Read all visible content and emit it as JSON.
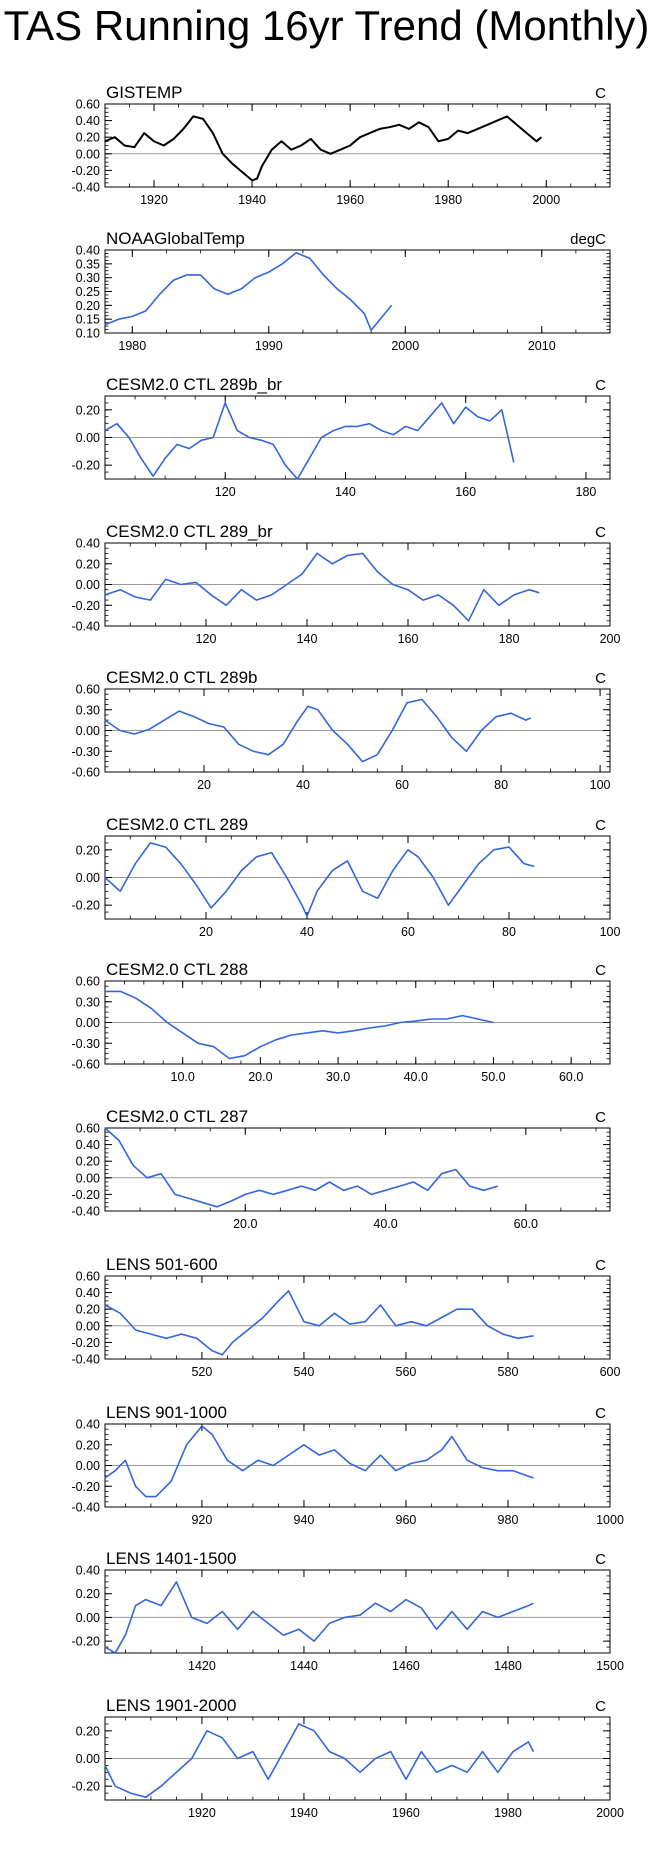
{
  "title": "TAS Running 16yr Trend (Monthly)",
  "colors": {
    "black": "#000000",
    "blue": "#3366dd",
    "zero": "#9a9a9a"
  },
  "chart_data": [
    {
      "type": "line",
      "title": "GISTEMP",
      "units": "C",
      "color": "black",
      "xlim": [
        1910,
        2013
      ],
      "ylim": [
        -0.4,
        0.6
      ],
      "xticks": [
        1920,
        1940,
        1960,
        1980,
        2000
      ],
      "xticklabels": [
        "1920",
        "1940",
        "1960",
        "1980",
        "2000"
      ],
      "yticks": [
        -0.4,
        -0.2,
        0,
        0.2,
        0.4,
        0.6
      ],
      "yticklabels": [
        "-0.40",
        "-0.20",
        "0.00",
        "0.20",
        "0.40",
        "0.60"
      ],
      "x": [
        1910,
        1912,
        1914,
        1916,
        1918,
        1920,
        1922,
        1924,
        1926,
        1928,
        1930,
        1932,
        1934,
        1936,
        1938,
        1940,
        1941,
        1942,
        1944,
        1946,
        1948,
        1950,
        1952,
        1954,
        1956,
        1958,
        1960,
        1962,
        1964,
        1966,
        1968,
        1970,
        1972,
        1974,
        1976,
        1978,
        1980,
        1982,
        1984,
        1986,
        1988,
        1990,
        1992,
        1994,
        1996,
        1998,
        1999
      ],
      "y": [
        0.15,
        0.2,
        0.1,
        0.08,
        0.25,
        0.15,
        0.1,
        0.18,
        0.3,
        0.45,
        0.42,
        0.25,
        0.0,
        -0.12,
        -0.22,
        -0.32,
        -0.3,
        -0.15,
        0.05,
        0.15,
        0.05,
        0.1,
        0.18,
        0.05,
        0.0,
        0.05,
        0.1,
        0.2,
        0.25,
        0.3,
        0.32,
        0.35,
        0.3,
        0.38,
        0.32,
        0.15,
        0.18,
        0.28,
        0.25,
        0.3,
        0.35,
        0.4,
        0.45,
        0.35,
        0.25,
        0.15,
        0.2
      ]
    },
    {
      "type": "line",
      "title": "NOAAGlobalTemp",
      "units": "degC",
      "color": "blue",
      "xlim": [
        1978,
        2015
      ],
      "ylim": [
        0.1,
        0.4
      ],
      "xticks": [
        1980,
        1990,
        2000,
        2010
      ],
      "xticklabels": [
        "1980",
        "1990",
        "2000",
        "2010"
      ],
      "yticks": [
        0.1,
        0.15,
        0.2,
        0.25,
        0.3,
        0.35,
        0.4
      ],
      "yticklabels": [
        "0.10",
        "0.15",
        "0.20",
        "0.25",
        "0.30",
        "0.35",
        "0.40"
      ],
      "x": [
        1978,
        1979,
        1980,
        1981,
        1982,
        1983,
        1984,
        1985,
        1986,
        1987,
        1988,
        1989,
        1990,
        1991,
        1992,
        1993,
        1994,
        1995,
        1996,
        1997,
        1997.5,
        1998,
        1999
      ],
      "y": [
        0.13,
        0.15,
        0.16,
        0.18,
        0.24,
        0.29,
        0.31,
        0.31,
        0.26,
        0.24,
        0.26,
        0.3,
        0.32,
        0.35,
        0.39,
        0.37,
        0.31,
        0.26,
        0.22,
        0.17,
        0.11,
        0.14,
        0.2
      ]
    },
    {
      "type": "line",
      "title": "CESM2.0 CTL 289b_br",
      "units": "C",
      "color": "blue",
      "xlim": [
        100,
        184
      ],
      "ylim": [
        -0.3,
        0.3
      ],
      "xticks": [
        120,
        140,
        160,
        180
      ],
      "xticklabels": [
        "120",
        "140",
        "160",
        "180"
      ],
      "yticks": [
        -0.2,
        0,
        0.2
      ],
      "yticklabels": [
        "-0.20",
        "0.00",
        "0.20"
      ],
      "x": [
        100,
        102,
        104,
        106,
        108,
        110,
        112,
        114,
        116,
        118,
        120,
        122,
        124,
        126,
        128,
        130,
        132,
        134,
        136,
        138,
        140,
        142,
        144,
        146,
        148,
        150,
        152,
        154,
        156,
        158,
        160,
        162,
        164,
        166,
        168
      ],
      "y": [
        0.05,
        0.1,
        0.0,
        -0.15,
        -0.28,
        -0.15,
        -0.05,
        -0.08,
        -0.02,
        0.0,
        0.25,
        0.05,
        0.0,
        -0.02,
        -0.05,
        -0.2,
        -0.3,
        -0.15,
        0.0,
        0.05,
        0.08,
        0.08,
        0.1,
        0.05,
        0.02,
        0.08,
        0.05,
        0.15,
        0.25,
        0.1,
        0.22,
        0.15,
        0.12,
        0.2,
        -0.18
      ]
    },
    {
      "type": "line",
      "title": "CESM2.0 CTL 289_br",
      "units": "C",
      "color": "blue",
      "xlim": [
        100,
        200
      ],
      "ylim": [
        -0.4,
        0.4
      ],
      "xticks": [
        120,
        140,
        160,
        180,
        200
      ],
      "xticklabels": [
        "120",
        "140",
        "160",
        "180",
        "200"
      ],
      "yticks": [
        -0.4,
        -0.2,
        0,
        0.2,
        0.4
      ],
      "yticklabels": [
        "-0.40",
        "-0.20",
        "0.00",
        "0.20",
        "0.40"
      ],
      "x": [
        100,
        103,
        106,
        109,
        112,
        115,
        118,
        121,
        124,
        127,
        130,
        133,
        136,
        139,
        142,
        145,
        148,
        151,
        154,
        157,
        160,
        163,
        166,
        169,
        172,
        175,
        178,
        181,
        184,
        186
      ],
      "y": [
        -0.1,
        -0.05,
        -0.12,
        -0.15,
        0.05,
        0.0,
        0.02,
        -0.1,
        -0.2,
        -0.05,
        -0.15,
        -0.1,
        0.0,
        0.1,
        0.3,
        0.2,
        0.28,
        0.3,
        0.12,
        0.0,
        -0.05,
        -0.15,
        -0.1,
        -0.2,
        -0.35,
        -0.05,
        -0.2,
        -0.1,
        -0.05,
        -0.08
      ]
    },
    {
      "type": "line",
      "title": "CESM2.0 CTL 289b",
      "units": "C",
      "color": "blue",
      "xlim": [
        0,
        102
      ],
      "ylim": [
        -0.6,
        0.6
      ],
      "xticks": [
        20,
        40,
        60,
        80,
        100
      ],
      "xticklabels": [
        "20",
        "40",
        "60",
        "80",
        "100"
      ],
      "yticks": [
        -0.6,
        -0.3,
        0,
        0.3,
        0.6
      ],
      "yticklabels": [
        "-0.60",
        "-0.30",
        "0.00",
        "0.30",
        "0.60"
      ],
      "x": [
        0,
        3,
        6,
        9,
        12,
        15,
        18,
        21,
        24,
        27,
        30,
        33,
        36,
        39,
        41,
        43,
        46,
        49,
        52,
        55,
        58,
        61,
        64,
        67,
        70,
        73,
        76,
        79,
        82,
        85,
        86
      ],
      "y": [
        0.15,
        0.0,
        -0.05,
        0.02,
        0.15,
        0.28,
        0.2,
        0.1,
        0.05,
        -0.2,
        -0.3,
        -0.35,
        -0.2,
        0.15,
        0.35,
        0.3,
        0.0,
        -0.2,
        -0.45,
        -0.35,
        0.0,
        0.4,
        0.45,
        0.2,
        -0.1,
        -0.3,
        0.0,
        0.2,
        0.25,
        0.15,
        0.18
      ]
    },
    {
      "type": "line",
      "title": "CESM2.0 CTL 289",
      "units": "C",
      "color": "blue",
      "xlim": [
        0,
        100
      ],
      "ylim": [
        -0.3,
        0.3
      ],
      "xticks": [
        20,
        40,
        60,
        80,
        100
      ],
      "xticklabels": [
        "20",
        "40",
        "60",
        "80",
        "100"
      ],
      "yticks": [
        -0.2,
        0,
        0.2
      ],
      "yticklabels": [
        "-0.20",
        "0.00",
        "0.20"
      ],
      "x": [
        0,
        3,
        6,
        9,
        12,
        15,
        18,
        21,
        24,
        27,
        30,
        33,
        36,
        39,
        40,
        42,
        45,
        48,
        51,
        54,
        57,
        60,
        62,
        65,
        68,
        71,
        74,
        77,
        80,
        83,
        85
      ],
      "y": [
        0.0,
        -0.1,
        0.1,
        0.25,
        0.22,
        0.1,
        -0.05,
        -0.22,
        -0.1,
        0.05,
        0.15,
        0.18,
        0.0,
        -0.2,
        -0.28,
        -0.1,
        0.05,
        0.12,
        -0.1,
        -0.15,
        0.05,
        0.2,
        0.15,
        0.0,
        -0.2,
        -0.05,
        0.1,
        0.2,
        0.22,
        0.1,
        0.08
      ]
    },
    {
      "type": "line",
      "title": "CESM2.0 CTL 288",
      "units": "C",
      "color": "blue",
      "xlim": [
        0,
        65
      ],
      "ylim": [
        -0.6,
        0.6
      ],
      "xticks": [
        10,
        20,
        30,
        40,
        50,
        60
      ],
      "xticklabels": [
        "10.0",
        "20.0",
        "30.0",
        "40.0",
        "50.0",
        "60.0"
      ],
      "yticks": [
        -0.6,
        -0.3,
        0,
        0.3,
        0.6
      ],
      "yticklabels": [
        "-0.60",
        "-0.30",
        "0.00",
        "0.30",
        "0.60"
      ],
      "x": [
        0,
        2,
        4,
        6,
        8,
        10,
        12,
        14,
        16,
        18,
        20,
        22,
        24,
        26,
        28,
        30,
        32,
        34,
        36,
        38,
        40,
        42,
        44,
        46,
        48,
        50
      ],
      "y": [
        0.45,
        0.45,
        0.35,
        0.2,
        0.0,
        -0.15,
        -0.3,
        -0.35,
        -0.52,
        -0.48,
        -0.35,
        -0.25,
        -0.18,
        -0.15,
        -0.12,
        -0.15,
        -0.12,
        -0.08,
        -0.05,
        0.0,
        0.02,
        0.05,
        0.05,
        0.1,
        0.05,
        0.0
      ]
    },
    {
      "type": "line",
      "title": "CESM2.0 CTL 287",
      "units": "C",
      "color": "blue",
      "xlim": [
        0,
        72
      ],
      "ylim": [
        -0.4,
        0.6
      ],
      "xticks": [
        20,
        40,
        60
      ],
      "xticklabels": [
        "20.0",
        "40.0",
        "60.0"
      ],
      "yticks": [
        -0.4,
        -0.2,
        0,
        0.2,
        0.4,
        0.6
      ],
      "yticklabels": [
        "-0.40",
        "-0.20",
        "0.00",
        "0.20",
        "0.40",
        "0.60"
      ],
      "x": [
        0,
        2,
        4,
        6,
        8,
        10,
        12,
        14,
        16,
        18,
        20,
        22,
        24,
        26,
        28,
        30,
        32,
        34,
        36,
        38,
        40,
        42,
        44,
        46,
        48,
        50,
        52,
        54,
        56
      ],
      "y": [
        0.6,
        0.45,
        0.15,
        0.0,
        0.05,
        -0.2,
        -0.25,
        -0.3,
        -0.35,
        -0.28,
        -0.2,
        -0.15,
        -0.2,
        -0.15,
        -0.1,
        -0.15,
        -0.05,
        -0.15,
        -0.1,
        -0.2,
        -0.15,
        -0.1,
        -0.05,
        -0.15,
        0.05,
        0.1,
        -0.1,
        -0.15,
        -0.1
      ]
    },
    {
      "type": "line",
      "title": "LENS 501-600",
      "units": "C",
      "color": "blue",
      "xlim": [
        501,
        600
      ],
      "ylim": [
        -0.4,
        0.6
      ],
      "xticks": [
        520,
        540,
        560,
        580,
        600
      ],
      "xticklabels": [
        "520",
        "540",
        "560",
        "580",
        "600"
      ],
      "yticks": [
        -0.4,
        -0.2,
        0,
        0.2,
        0.4,
        0.6
      ],
      "yticklabels": [
        "-0.40",
        "-0.20",
        "0.00",
        "0.20",
        "0.40",
        "0.60"
      ],
      "x": [
        501,
        504,
        507,
        510,
        513,
        516,
        519,
        522,
        524,
        526,
        529,
        532,
        535,
        537,
        540,
        543,
        546,
        549,
        552,
        555,
        558,
        561,
        564,
        567,
        570,
        573,
        576,
        579,
        582,
        585
      ],
      "y": [
        0.25,
        0.15,
        -0.05,
        -0.1,
        -0.15,
        -0.1,
        -0.15,
        -0.3,
        -0.35,
        -0.2,
        -0.05,
        0.1,
        0.3,
        0.42,
        0.05,
        0.0,
        0.15,
        0.02,
        0.05,
        0.25,
        0.0,
        0.05,
        0.0,
        0.1,
        0.2,
        0.2,
        0.0,
        -0.1,
        -0.15,
        -0.12
      ]
    },
    {
      "type": "line",
      "title": "LENS 901-1000",
      "units": "C",
      "color": "blue",
      "xlim": [
        901,
        1000
      ],
      "ylim": [
        -0.4,
        0.4
      ],
      "xticks": [
        920,
        940,
        960,
        980,
        1000
      ],
      "xticklabels": [
        "920",
        "940",
        "960",
        "980",
        "1000"
      ],
      "yticks": [
        -0.4,
        -0.2,
        0,
        0.2,
        0.4
      ],
      "yticklabels": [
        "-0.40",
        "-0.20",
        "0.00",
        "0.20",
        "0.40"
      ],
      "x": [
        901,
        903,
        905,
        907,
        909,
        911,
        914,
        917,
        920,
        922,
        925,
        928,
        931,
        934,
        937,
        940,
        943,
        946,
        949,
        952,
        955,
        958,
        961,
        964,
        967,
        969,
        972,
        975,
        978,
        981,
        985
      ],
      "y": [
        -0.12,
        -0.05,
        0.05,
        -0.2,
        -0.3,
        -0.3,
        -0.15,
        0.2,
        0.38,
        0.3,
        0.05,
        -0.05,
        0.05,
        0.0,
        0.1,
        0.2,
        0.1,
        0.15,
        0.02,
        -0.05,
        0.1,
        -0.05,
        0.02,
        0.05,
        0.15,
        0.28,
        0.05,
        -0.02,
        -0.05,
        -0.05,
        -0.12
      ]
    },
    {
      "type": "line",
      "title": "LENS 1401-1500",
      "units": "C",
      "color": "blue",
      "xlim": [
        1401,
        1500
      ],
      "ylim": [
        -0.3,
        0.4
      ],
      "xticks": [
        1420,
        1440,
        1460,
        1480,
        1500
      ],
      "xticklabels": [
        "1420",
        "1440",
        "1460",
        "1480",
        "1500"
      ],
      "yticks": [
        -0.2,
        0,
        0.2,
        0.4
      ],
      "yticklabels": [
        "-0.20",
        "0.00",
        "0.20",
        "0.40"
      ],
      "x": [
        1401,
        1403,
        1405,
        1407,
        1409,
        1412,
        1415,
        1418,
        1421,
        1424,
        1427,
        1430,
        1433,
        1436,
        1439,
        1442,
        1445,
        1448,
        1451,
        1454,
        1457,
        1460,
        1463,
        1466,
        1469,
        1472,
        1475,
        1478,
        1481,
        1484,
        1485
      ],
      "y": [
        -0.25,
        -0.3,
        -0.15,
        0.1,
        0.15,
        0.1,
        0.3,
        0.0,
        -0.05,
        0.05,
        -0.1,
        0.05,
        -0.05,
        -0.15,
        -0.1,
        -0.2,
        -0.05,
        0.0,
        0.02,
        0.12,
        0.05,
        0.15,
        0.08,
        -0.1,
        0.05,
        -0.1,
        0.05,
        0.0,
        0.05,
        0.1,
        0.12
      ]
    },
    {
      "type": "line",
      "title": "LENS 1901-2000",
      "units": "C",
      "color": "blue",
      "xlim": [
        1901,
        2000
      ],
      "ylim": [
        -0.3,
        0.3
      ],
      "xticks": [
        1920,
        1940,
        1960,
        1980,
        2000
      ],
      "xticklabels": [
        "1920",
        "1940",
        "1960",
        "1980",
        "2000"
      ],
      "yticks": [
        -0.2,
        0,
        0.2
      ],
      "yticklabels": [
        "-0.20",
        "0.00",
        "0.20"
      ],
      "x": [
        1901,
        1903,
        1906,
        1909,
        1912,
        1915,
        1918,
        1921,
        1924,
        1927,
        1930,
        1933,
        1936,
        1939,
        1942,
        1945,
        1948,
        1951,
        1954,
        1957,
        1960,
        1963,
        1966,
        1969,
        1972,
        1975,
        1978,
        1981,
        1984,
        1985
      ],
      "y": [
        -0.05,
        -0.2,
        -0.25,
        -0.28,
        -0.2,
        -0.1,
        0.0,
        0.2,
        0.15,
        0.0,
        0.05,
        -0.15,
        0.05,
        0.25,
        0.2,
        0.05,
        0.0,
        -0.1,
        0.0,
        0.05,
        -0.15,
        0.05,
        -0.1,
        -0.05,
        -0.1,
        0.05,
        -0.1,
        0.05,
        0.12,
        0.05
      ]
    }
  ]
}
